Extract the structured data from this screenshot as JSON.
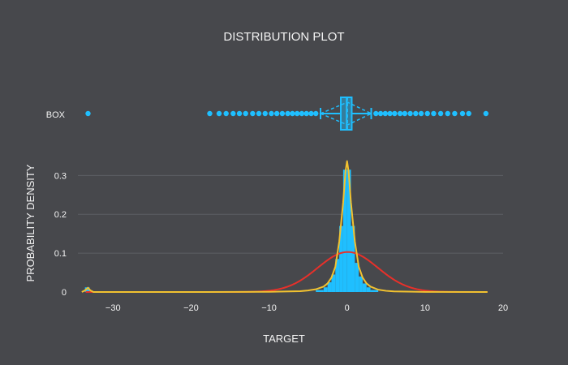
{
  "chart_data": {
    "type": "histogram",
    "title": "DISTRIBUTION PLOT",
    "xlabel": "TARGET",
    "ylabel": "PROBABILITY DENSITY",
    "xlim": [
      -34.5,
      20
    ],
    "ylim": [
      0,
      0.355
    ],
    "x_ticks": [
      -30,
      -20,
      -10,
      0,
      10,
      20
    ],
    "y_ticks": [
      0,
      0.1,
      0.2,
      0.3
    ],
    "grid": true,
    "box": {
      "label": "BOX",
      "q1": -0.8,
      "median": -0.05,
      "q3": 0.6,
      "mean": 0.05,
      "lower_fence": -3.4,
      "upper_fence": 3.1,
      "outliers": [
        -33.2,
        -17.6,
        -16.4,
        -15.5,
        -14.6,
        -13.8,
        -13.0,
        -12.1,
        -11.3,
        -10.5,
        -9.7,
        -9.0,
        -8.3,
        -7.6,
        -7.0,
        -6.4,
        -5.8,
        -5.2,
        -4.6,
        -4.0,
        3.7,
        4.3,
        4.9,
        5.5,
        6.1,
        6.8,
        7.4,
        8.1,
        8.8,
        9.5,
        10.3,
        11.1,
        12.0,
        12.9,
        13.8,
        14.8,
        15.6,
        17.8
      ]
    },
    "histogram": {
      "bins": [
        {
          "x0": -33.6,
          "x1": -33.0,
          "density": 0.012
        },
        {
          "x0": -4.0,
          "x1": -3.0,
          "density": 0.005
        },
        {
          "x0": -3.0,
          "x1": -2.5,
          "density": 0.012
        },
        {
          "x0": -2.5,
          "x1": -2.0,
          "density": 0.025
        },
        {
          "x0": -2.0,
          "x1": -1.5,
          "density": 0.045
        },
        {
          "x0": -1.5,
          "x1": -1.0,
          "density": 0.085
        },
        {
          "x0": -1.0,
          "x1": -0.5,
          "density": 0.17
        },
        {
          "x0": -0.5,
          "x1": 0.0,
          "density": 0.315
        },
        {
          "x0": 0.0,
          "x1": 0.5,
          "density": 0.315
        },
        {
          "x0": 0.5,
          "x1": 1.0,
          "density": 0.17
        },
        {
          "x0": 1.0,
          "x1": 1.5,
          "density": 0.075
        },
        {
          "x0": 1.5,
          "x1": 2.0,
          "density": 0.04
        },
        {
          "x0": 2.0,
          "x1": 2.5,
          "density": 0.022
        },
        {
          "x0": 2.5,
          "x1": 3.0,
          "density": 0.012
        },
        {
          "x0": 3.0,
          "x1": 4.0,
          "density": 0.005
        }
      ]
    },
    "normal_curve": {
      "mean": 0.1,
      "sd": 3.85,
      "peak": 0.103
    },
    "kde_curve": {
      "x": [
        -34.0,
        -33.6,
        -33.2,
        -32.9,
        -32.5,
        -31.0,
        -20.0,
        -10.0,
        -6.0,
        -5.0,
        -4.0,
        -3.0,
        -2.5,
        -2.0,
        -1.5,
        -1.0,
        -0.5,
        -0.2,
        0.0,
        0.2,
        0.5,
        1.0,
        1.5,
        2.0,
        2.5,
        3.0,
        4.0,
        5.0,
        6.0,
        10.0,
        18.0
      ],
      "y": [
        0.0,
        0.004,
        0.011,
        0.004,
        0.0,
        0.0,
        0.0,
        0.0005,
        0.002,
        0.004,
        0.007,
        0.014,
        0.022,
        0.037,
        0.065,
        0.13,
        0.23,
        0.31,
        0.337,
        0.31,
        0.23,
        0.13,
        0.065,
        0.037,
        0.022,
        0.014,
        0.006,
        0.003,
        0.0015,
        0.0003,
        0.0
      ]
    },
    "colors": {
      "histogram": "#1fbfff",
      "box": "#1fbfff",
      "normal": "#e8302a",
      "kde": "#f2c230",
      "background": "#47484c",
      "grid": "#5d5f64",
      "text": "#f2f2f2"
    }
  }
}
